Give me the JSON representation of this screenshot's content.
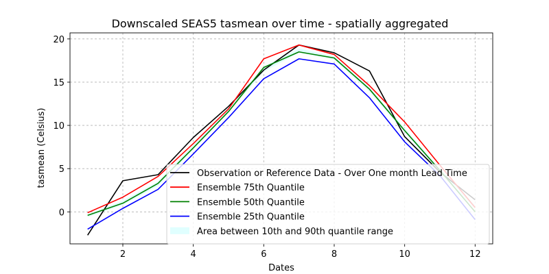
{
  "chart_data": {
    "type": "line",
    "title": "Downscaled SEAS5 tasmean over time - spatially aggregated",
    "xlabel": "Dates",
    "ylabel": "tasmean (Celsius)",
    "xlim": [
      0.5,
      12.5
    ],
    "ylim": [
      -3.7,
      20.7
    ],
    "xticks": [
      2,
      4,
      6,
      8,
      10,
      12
    ],
    "yticks": [
      0,
      5,
      10,
      15,
      20
    ],
    "grid": true,
    "legend_position": "lower right",
    "x": [
      1,
      2,
      3,
      4,
      5,
      6,
      7,
      8,
      9,
      10,
      11,
      12
    ],
    "band": {
      "name": "Area between 10th and 90th quantile range",
      "color": "#e0ffff",
      "lower": [
        -0.6,
        0.8,
        3.0,
        7.2,
        11.5,
        16.2,
        18.4,
        17.6,
        13.9,
        9.2,
        4.6,
        0.3
      ],
      "upper": [
        -0.3,
        1.3,
        3.5,
        7.8,
        12.1,
        16.8,
        18.9,
        18.0,
        14.4,
        9.7,
        5.0,
        0.8
      ]
    },
    "series": [
      {
        "name": "Observation or Reference Data - Over One month Lead Time",
        "color": "#000000",
        "values": [
          -2.7,
          3.6,
          4.3,
          8.6,
          12.2,
          16.4,
          19.3,
          18.4,
          16.3,
          8.7,
          4.6,
          1.4
        ]
      },
      {
        "name": "Ensemble 75th Quantile",
        "color": "#ff0000",
        "values": [
          -0.1,
          1.7,
          4.1,
          7.9,
          11.9,
          17.7,
          19.3,
          18.2,
          14.6,
          10.4,
          5.4,
          0.5
        ]
      },
      {
        "name": "Ensemble 50th Quantile",
        "color": "#008000",
        "values": [
          -0.4,
          1.0,
          3.3,
          7.4,
          11.6,
          16.7,
          18.5,
          17.8,
          14.2,
          9.4,
          4.8,
          0.0
        ]
      },
      {
        "name": "Ensemble 25th Quantile",
        "color": "#0000ff",
        "values": [
          -2.0,
          0.4,
          2.6,
          6.7,
          10.9,
          15.4,
          17.7,
          17.1,
          13.2,
          8.1,
          4.2,
          -0.9
        ]
      }
    ]
  }
}
